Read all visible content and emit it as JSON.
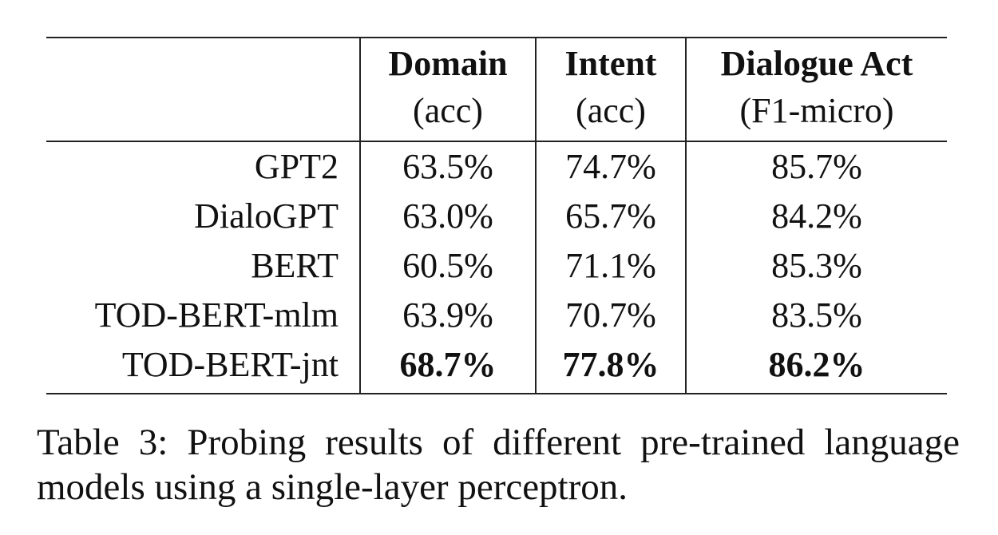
{
  "table": {
    "columns": [
      {
        "title": "",
        "sub": ""
      },
      {
        "title": "Domain",
        "sub": "(acc)"
      },
      {
        "title": "Intent",
        "sub": "(acc)"
      },
      {
        "title": "Dialogue Act",
        "sub": "(F1-micro)"
      }
    ],
    "rows": [
      {
        "model": "GPT2",
        "domain": "63.5%",
        "intent": "74.7%",
        "dialogue_act": "85.7%",
        "bold": false
      },
      {
        "model": "DialoGPT",
        "domain": "63.0%",
        "intent": "65.7%",
        "dialogue_act": "84.2%",
        "bold": false
      },
      {
        "model": "BERT",
        "domain": "60.5%",
        "intent": "71.1%",
        "dialogue_act": "85.3%",
        "bold": false
      },
      {
        "model": "TOD-BERT-mlm",
        "domain": "63.9%",
        "intent": "70.7%",
        "dialogue_act": "83.5%",
        "bold": false
      },
      {
        "model": "TOD-BERT-jnt",
        "domain": "68.7%",
        "intent": "77.8%",
        "dialogue_act": "86.2%",
        "bold": true
      }
    ]
  },
  "caption": "Table 3:  Probing results of different pre-trained language models using a single-layer perceptron."
}
